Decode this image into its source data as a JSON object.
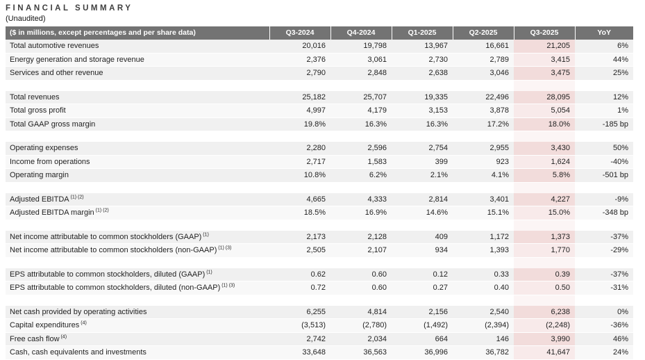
{
  "header": {
    "title": "FINANCIAL SUMMARY",
    "subtitle": "(Unaudited)"
  },
  "colors": {
    "header_bg": "#737373",
    "header_text": "#ffffff",
    "row_band_dark": "#f0f0f0",
    "row_band_light": "#f8f8f8",
    "highlight_col_dark": "#f2dcdb",
    "highlight_col_light": "#f8eaea",
    "title_text": "#3f3f3f"
  },
  "table": {
    "units_label": "($ in millions, except percentages and per share data)",
    "columns": [
      "Q3-2024",
      "Q4-2024",
      "Q1-2025",
      "Q2-2025",
      "Q3-2025",
      "YoY"
    ],
    "highlight_column": "Q3-2025",
    "sections": [
      {
        "rows": [
          {
            "label": "Total automotive revenues",
            "sup": "",
            "values": [
              "20,016",
              "19,798",
              "13,967",
              "16,661",
              "21,205",
              "6%"
            ]
          },
          {
            "label": "Energy generation and storage revenue",
            "sup": "",
            "values": [
              "2,376",
              "3,061",
              "2,730",
              "2,789",
              "3,415",
              "44%"
            ]
          },
          {
            "label": "Services and other revenue",
            "sup": "",
            "values": [
              "2,790",
              "2,848",
              "2,638",
              "3,046",
              "3,475",
              "25%"
            ]
          }
        ]
      },
      {
        "rows": [
          {
            "label": "Total revenues",
            "sup": "",
            "values": [
              "25,182",
              "25,707",
              "19,335",
              "22,496",
              "28,095",
              "12%"
            ]
          },
          {
            "label": "Total gross profit",
            "sup": "",
            "values": [
              "4,997",
              "4,179",
              "3,153",
              "3,878",
              "5,054",
              "1%"
            ]
          },
          {
            "label": "Total GAAP gross margin",
            "sup": "",
            "values": [
              "19.8%",
              "16.3%",
              "16.3%",
              "17.2%",
              "18.0%",
              "-185 bp"
            ]
          }
        ]
      },
      {
        "rows": [
          {
            "label": "Operating expenses",
            "sup": "",
            "values": [
              "2,280",
              "2,596",
              "2,754",
              "2,955",
              "3,430",
              "50%"
            ]
          },
          {
            "label": "Income from operations",
            "sup": "",
            "values": [
              "2,717",
              "1,583",
              "399",
              "923",
              "1,624",
              "-40%"
            ]
          },
          {
            "label": "Operating margin",
            "sup": "",
            "values": [
              "10.8%",
              "6.2%",
              "2.1%",
              "4.1%",
              "5.8%",
              "-501 bp"
            ]
          }
        ]
      },
      {
        "rows": [
          {
            "label": "Adjusted EBITDA",
            "sup": "(1) (2)",
            "values": [
              "4,665",
              "4,333",
              "2,814",
              "3,401",
              "4,227",
              "-9%"
            ]
          },
          {
            "label": "Adjusted EBITDA margin",
            "sup": "(1) (2)",
            "values": [
              "18.5%",
              "16.9%",
              "14.6%",
              "15.1%",
              "15.0%",
              "-348 bp"
            ]
          }
        ]
      },
      {
        "rows": [
          {
            "label": "Net income attributable to common stockholders (GAAP)",
            "sup": "(1)",
            "values": [
              "2,173",
              "2,128",
              "409",
              "1,172",
              "1,373",
              "-37%"
            ]
          },
          {
            "label": "Net income attributable to common stockholders (non-GAAP)",
            "sup": "(1) (3)",
            "values": [
              "2,505",
              "2,107",
              "934",
              "1,393",
              "1,770",
              "-29%"
            ]
          }
        ]
      },
      {
        "rows": [
          {
            "label": "EPS attributable to common stockholders, diluted (GAAP)",
            "sup": "(1)",
            "values": [
              "0.62",
              "0.60",
              "0.12",
              "0.33",
              "0.39",
              "-37%"
            ]
          },
          {
            "label": "EPS attributable to common stockholders, diluted (non-GAAP)",
            "sup": "(1) (3)",
            "values": [
              "0.72",
              "0.60",
              "0.27",
              "0.40",
              "0.50",
              "-31%"
            ]
          }
        ]
      },
      {
        "rows": [
          {
            "label": "Net cash provided by operating activities",
            "sup": "",
            "values": [
              "6,255",
              "4,814",
              "2,156",
              "2,540",
              "6,238",
              "0%"
            ]
          },
          {
            "label": "Capital expenditures",
            "sup": "(4)",
            "values": [
              "(3,513)",
              "(2,780)",
              "(1,492)",
              "(2,394)",
              "(2,248)",
              "-36%"
            ]
          },
          {
            "label": "Free cash flow",
            "sup": "(4)",
            "values": [
              "2,742",
              "2,034",
              "664",
              "146",
              "3,990",
              "46%"
            ]
          },
          {
            "label": "Cash, cash equivalents and investments",
            "sup": "",
            "values": [
              "33,648",
              "36,563",
              "36,996",
              "36,782",
              "41,647",
              "24%"
            ]
          }
        ]
      }
    ]
  }
}
